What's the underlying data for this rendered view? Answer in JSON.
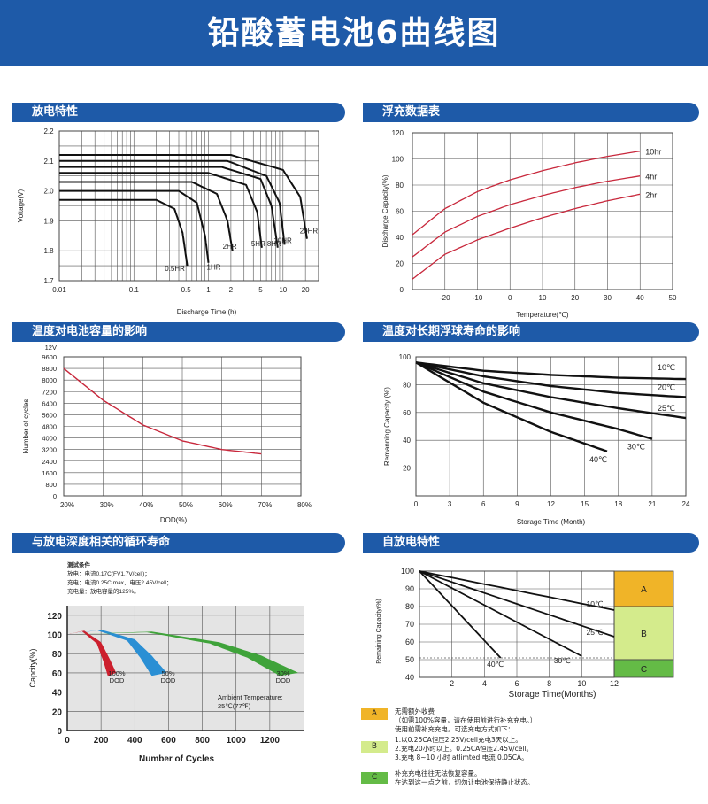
{
  "page": {
    "title": "铅酸蓄电池6曲线图"
  },
  "sections": {
    "discharge": "放电特性",
    "float": "浮充数据表",
    "temp_capacity": "温度对电池容量的影响",
    "temp_life": "温度对长期浮球寿命的影响",
    "cycle": "与放电深度相关的循环寿命",
    "self_discharge": "自放电特性"
  },
  "colors": {
    "header_blue": "#1e5aa8",
    "curve_red": "#c8283c",
    "zone_a": "#f0b428",
    "zone_b": "#d4eb8c",
    "zone_c": "#64bb46"
  },
  "charts": {
    "discharge": {
      "xlabel": "Discharge Time (h)",
      "ylabel": "Voltage(V)",
      "xticks": [
        "0.01",
        "0.1",
        "0.5",
        "1",
        "2",
        "5",
        "10",
        "20"
      ],
      "yticks": [
        "1.7",
        "1.8",
        "1.9",
        "2.0",
        "2.1",
        "2.2"
      ],
      "curve_labels": [
        "0.5HR",
        "1HR",
        "2HR",
        "5HR",
        "8HR",
        "10HR",
        "20HR"
      ]
    },
    "float": {
      "xlabel": "Temperature(℃)",
      "ylabel": "Discharge Capacity(%)",
      "xticks": [
        "-20",
        "-10",
        "0",
        "10",
        "20",
        "30",
        "40",
        "50"
      ],
      "yticks": [
        "0",
        "20",
        "40",
        "60",
        "80",
        "100",
        "120"
      ],
      "curve_labels": [
        "10hr",
        "4hr",
        "2hr"
      ]
    },
    "temp_capacity": {
      "xlabel": "DOD(%)",
      "ylabel": "Number of cycles",
      "unit_label": "12V",
      "xticks": [
        "20%",
        "30%",
        "40%",
        "50%",
        "60%",
        "70%",
        "80%"
      ],
      "yticks": [
        "0",
        "800",
        "1600",
        "2400",
        "3200",
        "4000",
        "4800",
        "5600",
        "6400",
        "7200",
        "8000",
        "8800",
        "9600"
      ]
    },
    "temp_life": {
      "xlabel": "Storage Time (Month)",
      "ylabel": "Remanning Capacity (%)",
      "xticks": [
        "0",
        "3",
        "6",
        "9",
        "12",
        "15",
        "18",
        "21",
        "24"
      ],
      "yticks": [
        "20",
        "40",
        "60",
        "80",
        "100"
      ],
      "curve_labels": [
        "10℃",
        "20℃",
        "25℃",
        "30℃",
        "40℃"
      ]
    },
    "cycle": {
      "xlabel": "Number of Cycles",
      "ylabel": "Capcity(%)",
      "xticks": [
        "0",
        "200",
        "400",
        "600",
        "800",
        "1000",
        "1200"
      ],
      "yticks": [
        "0",
        "20",
        "40",
        "60",
        "80",
        "100",
        "120"
      ],
      "conditions": [
        "测试条件",
        "放电：电流0.17C(FV1.7V/cell)；",
        "充电：电流0.25C max，电压2.45V/cell；",
        "充电量：放电容量的125%。"
      ],
      "series_labels": [
        [
          "100%",
          "DOD"
        ],
        [
          "50%",
          "DOD"
        ],
        [
          "30%",
          "DOD"
        ]
      ],
      "ambient": [
        "Ambient Temperature:",
        "25℃(77℉)"
      ]
    },
    "self_discharge": {
      "xlabel": "Storage Time(Months)",
      "ylabel": "Remaining Capacity(%)",
      "xticks": [
        "2",
        "4",
        "6",
        "8",
        "10",
        "12"
      ],
      "yticks": [
        "40",
        "50",
        "60",
        "70",
        "80",
        "90",
        "100"
      ],
      "curve_labels": [
        "10℃",
        "25℃",
        "30℃",
        "40℃"
      ],
      "zones": [
        "A",
        "B",
        "C"
      ]
    }
  },
  "chart_data": [
    {
      "type": "line",
      "xlabel": "Discharge Time (h)",
      "ylabel": "Voltage(V)",
      "xscale": "log",
      "xlim": [
        0.01,
        30
      ],
      "ylim": [
        1.7,
        2.2
      ],
      "series": [
        {
          "name": "0.5HR",
          "x": [
            0.01,
            0.2,
            0.35,
            0.45,
            0.52
          ],
          "y": [
            1.97,
            1.97,
            1.94,
            1.86,
            1.75
          ]
        },
        {
          "name": "1HR",
          "x": [
            0.01,
            0.4,
            0.7,
            0.9,
            1.0
          ],
          "y": [
            2.0,
            2.0,
            1.96,
            1.85,
            1.76
          ]
        },
        {
          "name": "2HR",
          "x": [
            0.01,
            0.6,
            1.3,
            1.8,
            2.1
          ],
          "y": [
            2.03,
            2.03,
            1.99,
            1.9,
            1.8
          ]
        },
        {
          "name": "5HR",
          "x": [
            0.01,
            1.0,
            3.2,
            4.5,
            5.2
          ],
          "y": [
            2.06,
            2.06,
            2.02,
            1.93,
            1.81
          ]
        },
        {
          "name": "8HR",
          "x": [
            0.01,
            1.5,
            5.0,
            7.0,
            8.5
          ],
          "y": [
            2.08,
            2.08,
            2.04,
            1.95,
            1.81
          ]
        },
        {
          "name": "10HR",
          "x": [
            0.01,
            1.8,
            6.0,
            9.0,
            10.5
          ],
          "y": [
            2.1,
            2.1,
            2.05,
            1.96,
            1.82
          ]
        },
        {
          "name": "20HR",
          "x": [
            0.01,
            2.0,
            10.0,
            17.0,
            21.0
          ],
          "y": [
            2.12,
            2.12,
            2.07,
            1.98,
            1.84
          ]
        }
      ]
    },
    {
      "type": "line",
      "xlabel": "Temperature(℃)",
      "ylabel": "Discharge Capacity(%)",
      "xlim": [
        -30,
        50
      ],
      "ylim": [
        0,
        120
      ],
      "series": [
        {
          "name": "10hr",
          "x": [
            -30,
            -20,
            -10,
            0,
            10,
            20,
            30,
            40
          ],
          "y": [
            42,
            62,
            75,
            84,
            91,
            97,
            102,
            106
          ]
        },
        {
          "name": "4hr",
          "x": [
            -30,
            -20,
            -10,
            0,
            10,
            20,
            30,
            40
          ],
          "y": [
            25,
            44,
            56,
            65,
            72,
            78,
            83,
            87
          ]
        },
        {
          "name": "2hr",
          "x": [
            -30,
            -20,
            -10,
            0,
            10,
            20,
            30,
            40
          ],
          "y": [
            8,
            27,
            38,
            47,
            55,
            62,
            68,
            73
          ]
        }
      ]
    },
    {
      "type": "line",
      "xlabel": "DOD(%)",
      "ylabel": "Number of cycles",
      "xlim": [
        20,
        80
      ],
      "ylim": [
        0,
        9600
      ],
      "series": [
        {
          "x": [
            20,
            30,
            40,
            50,
            60,
            70
          ],
          "y": [
            8800,
            6600,
            4900,
            3800,
            3200,
            2900
          ]
        }
      ]
    },
    {
      "type": "line",
      "xlabel": "Storage Time (Month)",
      "ylabel": "Remanning Capacity (%)",
      "xlim": [
        0,
        24
      ],
      "ylim": [
        0,
        100
      ],
      "series": [
        {
          "name": "10℃",
          "x": [
            0,
            6,
            12,
            18,
            24
          ],
          "y": [
            96,
            90,
            87,
            85,
            84
          ]
        },
        {
          "name": "20℃",
          "x": [
            0,
            6,
            12,
            18,
            24
          ],
          "y": [
            96,
            86,
            79,
            74,
            71
          ]
        },
        {
          "name": "25℃",
          "x": [
            0,
            6,
            12,
            18,
            24
          ],
          "y": [
            96,
            81,
            71,
            63,
            56
          ]
        },
        {
          "name": "30℃",
          "x": [
            0,
            6,
            12,
            18,
            21
          ],
          "y": [
            96,
            75,
            60,
            48,
            41
          ]
        },
        {
          "name": "40℃",
          "x": [
            0,
            6,
            12,
            17
          ],
          "y": [
            96,
            67,
            46,
            32
          ]
        }
      ]
    },
    {
      "type": "area",
      "xlabel": "Number of Cycles",
      "ylabel": "Capcity(%)",
      "xlim": [
        0,
        1400
      ],
      "ylim": [
        0,
        130
      ],
      "series": [
        {
          "name": "100% DOD",
          "x": [
            0,
            100,
            200,
            250,
            290
          ],
          "y": [
            100,
            104,
            92,
            75,
            60
          ]
        },
        {
          "name": "50% DOD",
          "x": [
            0,
            200,
            400,
            500,
            590
          ],
          "y": [
            100,
            105,
            95,
            78,
            60
          ]
        },
        {
          "name": "30% DOD",
          "x": [
            0,
            500,
            900,
            1150,
            1370
          ],
          "y": [
            100,
            103,
            92,
            78,
            60
          ]
        }
      ]
    },
    {
      "type": "line",
      "xlabel": "Storage Time(Months)",
      "ylabel": "Remaining Capacity(%)",
      "xlim": [
        0,
        12
      ],
      "ylim": [
        40,
        100
      ],
      "series": [
        {
          "name": "10℃",
          "x": [
            0,
            12
          ],
          "y": [
            100,
            78
          ]
        },
        {
          "name": "25℃",
          "x": [
            0,
            12
          ],
          "y": [
            100,
            63
          ]
        },
        {
          "name": "30℃",
          "x": [
            0,
            10
          ],
          "y": [
            100,
            52
          ]
        },
        {
          "name": "40℃",
          "x": [
            0,
            5
          ],
          "y": [
            100,
            51
          ]
        }
      ]
    }
  ],
  "legend": [
    {
      "key": "A",
      "lines": [
        "无需额外收费",
        "（如需100%容量，请在使用前进行补充充电。）",
        "使用前需补充充电。可选充电方式如下："
      ]
    },
    {
      "key": "B",
      "lines": [
        "1.以0.25CA恒压2.25V/cell充电3天以上。",
        "2.充电20小时以上。0.25CA恒压2.45V/cell。",
        "3.充电 8~10 小时 atlimted 电流 0.05CA。"
      ]
    },
    {
      "key": "C",
      "lines": [
        "补充充电往往无法恢复容量。",
        "在达到这一点之前，切勿让电池保持静止状态。"
      ]
    }
  ]
}
